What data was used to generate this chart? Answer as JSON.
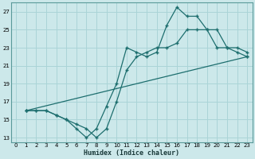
{
  "xlabel": "Humidex (Indice chaleur)",
  "bg_color": "#cce8ea",
  "grid_color": "#aad4d7",
  "line_color": "#1d6e6e",
  "xlim": [
    -0.5,
    23.5
  ],
  "ylim": [
    12.5,
    28
  ],
  "xticks": [
    0,
    1,
    2,
    3,
    4,
    5,
    6,
    7,
    8,
    9,
    10,
    11,
    12,
    13,
    14,
    15,
    16,
    17,
    18,
    19,
    20,
    21,
    22,
    23
  ],
  "yticks": [
    13,
    15,
    17,
    19,
    21,
    23,
    25,
    27
  ],
  "line1_x": [
    1,
    2,
    3,
    4,
    5,
    6,
    7,
    8,
    9,
    10,
    11,
    12,
    13,
    14,
    15,
    16,
    17,
    18,
    19,
    20,
    21,
    22,
    23
  ],
  "line1_y": [
    16,
    16,
    16,
    15.5,
    15,
    14,
    13,
    14,
    16.5,
    19,
    23,
    22.5,
    22,
    22.5,
    25.5,
    27.5,
    26.5,
    26.5,
    25,
    23,
    23,
    22.5,
    22
  ],
  "line2_x": [
    1,
    2,
    3,
    4,
    5,
    6,
    7,
    8,
    9,
    10,
    11,
    12,
    13,
    14,
    15,
    16,
    17,
    18,
    19,
    20,
    21,
    22,
    23
  ],
  "line2_y": [
    16,
    16,
    16,
    15.5,
    15,
    14.5,
    14,
    13,
    14,
    17,
    20.5,
    22,
    22.5,
    23,
    23,
    23.5,
    25,
    25,
    25,
    25,
    23,
    23,
    22.5
  ],
  "line3_x": [
    1,
    23
  ],
  "line3_y": [
    16,
    22
  ]
}
